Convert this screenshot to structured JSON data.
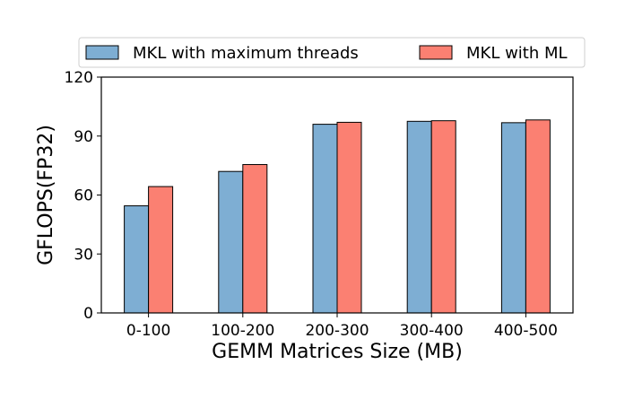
{
  "chart_data": {
    "type": "bar",
    "categories": [
      "0-100",
      "100-200",
      "200-300",
      "300-400",
      "400-500"
    ],
    "series": [
      {
        "name": "MKL with maximum threads",
        "color": "#7eaed3",
        "values": [
          54.5,
          72,
          96,
          97.5,
          96.8
        ]
      },
      {
        "name": "MKL with ML",
        "color": "#fb8072",
        "values": [
          64.3,
          75.5,
          97,
          97.8,
          98.2
        ]
      }
    ],
    "title": "",
    "xlabel": "GEMM Matrices Size (MB)",
    "ylabel": "GFLOPS(FP32)",
    "ylim": [
      0,
      120
    ],
    "yticks": [
      0,
      30,
      60,
      90,
      120
    ],
    "grid": false,
    "legend_position": "top, above plot"
  }
}
